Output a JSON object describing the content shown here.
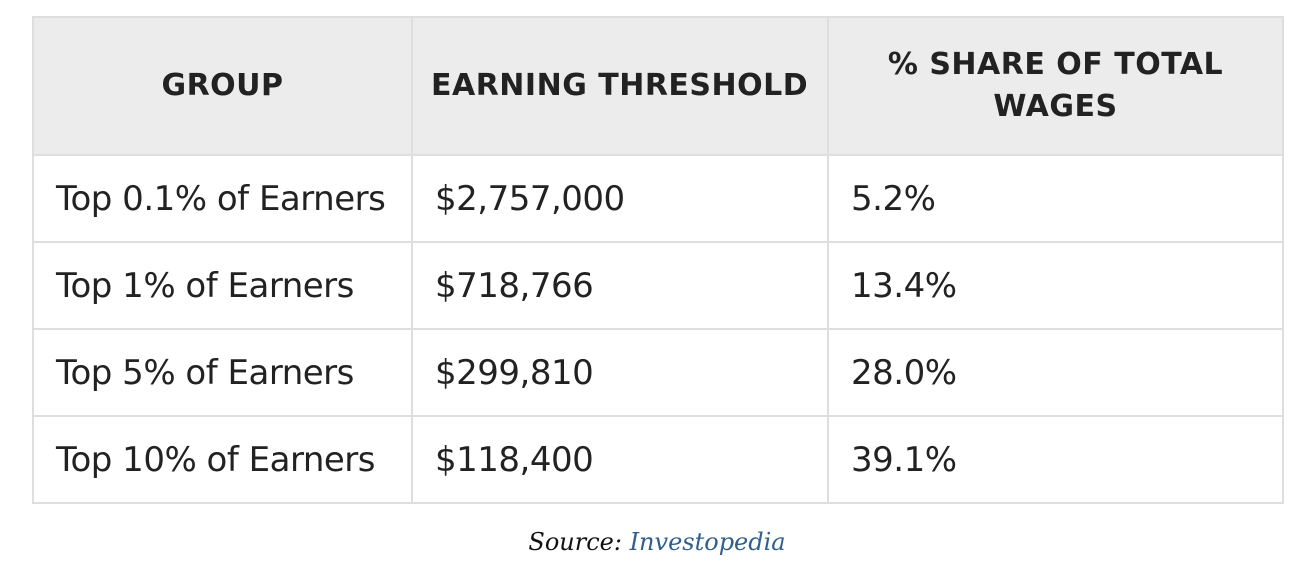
{
  "table": {
    "headers": [
      "GROUP",
      "EARNING THRESHOLD",
      "% SHARE OF TOTAL WAGES"
    ],
    "rows": [
      {
        "group": "Top 0.1% of Earners",
        "threshold": "$2,757,000",
        "share": "5.2%"
      },
      {
        "group": "Top 1% of Earners",
        "threshold": "$718,766",
        "share": "13.4%"
      },
      {
        "group": "Top 5% of Earners",
        "threshold": "$299,810",
        "share": "28.0%"
      },
      {
        "group": "Top 10% of Earners",
        "threshold": "$118,400",
        "share": "39.1%"
      }
    ]
  },
  "source": {
    "label": "Source:",
    "link_text": "Investopedia"
  }
}
